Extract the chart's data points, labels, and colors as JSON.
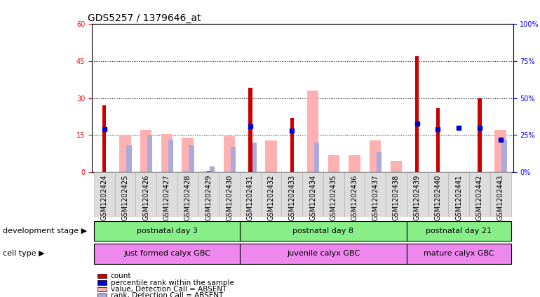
{
  "title": "GDS5257 / 1379646_at",
  "samples": [
    "GSM1202424",
    "GSM1202425",
    "GSM1202426",
    "GSM1202427",
    "GSM1202428",
    "GSM1202429",
    "GSM1202430",
    "GSM1202431",
    "GSM1202432",
    "GSM1202433",
    "GSM1202434",
    "GSM1202435",
    "GSM1202436",
    "GSM1202437",
    "GSM1202438",
    "GSM1202439",
    "GSM1202440",
    "GSM1202441",
    "GSM1202442",
    "GSM1202443"
  ],
  "count_values": [
    27,
    0,
    0,
    0,
    0,
    0.5,
    0,
    34,
    0,
    22,
    0,
    0,
    0,
    0,
    0,
    47,
    26,
    0,
    30,
    0
  ],
  "percentile_values": [
    29,
    0,
    0,
    0,
    0,
    0,
    0,
    31,
    0,
    28,
    0,
    0,
    0,
    0,
    0,
    33,
    29,
    30,
    30,
    22
  ],
  "absent_value_bars": [
    0,
    15,
    17,
    15.5,
    14,
    0.5,
    14.5,
    0,
    13,
    0,
    33,
    7,
    7,
    13,
    4.5,
    0,
    0,
    0,
    0,
    17
  ],
  "absent_rank_bars": [
    0,
    18,
    25,
    22,
    18,
    4,
    17,
    20,
    0,
    0,
    20,
    0,
    0,
    14,
    0,
    0,
    0,
    0,
    0,
    22
  ],
  "count_color": "#cc0000",
  "percentile_color": "#0000cc",
  "absent_value_color": "#ffb0b0",
  "absent_rank_color": "#aaaadd",
  "ylim_left": [
    0,
    60
  ],
  "ylim_right": [
    0,
    100
  ],
  "yticks_left": [
    0,
    15,
    30,
    45,
    60
  ],
  "yticks_right": [
    0,
    25,
    50,
    75,
    100
  ],
  "grid_dotted_values": [
    15,
    30,
    45
  ],
  "development_stages": [
    {
      "label": "postnatal day 3",
      "start": 0,
      "end": 7,
      "color": "#88ee88"
    },
    {
      "label": "postnatal day 8",
      "start": 7,
      "end": 15,
      "color": "#88ee88"
    },
    {
      "label": "postnatal day 21",
      "start": 15,
      "end": 20,
      "color": "#88ee88"
    }
  ],
  "cell_types": [
    {
      "label": "just formed calyx GBC",
      "start": 0,
      "end": 7,
      "color": "#ee88ee"
    },
    {
      "label": "juvenile calyx GBC",
      "start": 7,
      "end": 15,
      "color": "#ee88ee"
    },
    {
      "label": "mature calyx GBC",
      "start": 15,
      "end": 20,
      "color": "#ee88ee"
    }
  ],
  "dev_stage_label": "development stage",
  "cell_type_label": "cell type",
  "legend_items": [
    {
      "label": "count",
      "color": "#cc0000"
    },
    {
      "label": "percentile rank within the sample",
      "color": "#0000cc"
    },
    {
      "label": "value, Detection Call = ABSENT",
      "color": "#ffb0b0"
    },
    {
      "label": "rank, Detection Call = ABSENT",
      "color": "#aaaadd"
    }
  ],
  "background_color": "#ffffff",
  "title_fontsize": 10,
  "tick_fontsize": 7,
  "annot_fontsize": 8,
  "legend_fontsize": 7.5
}
